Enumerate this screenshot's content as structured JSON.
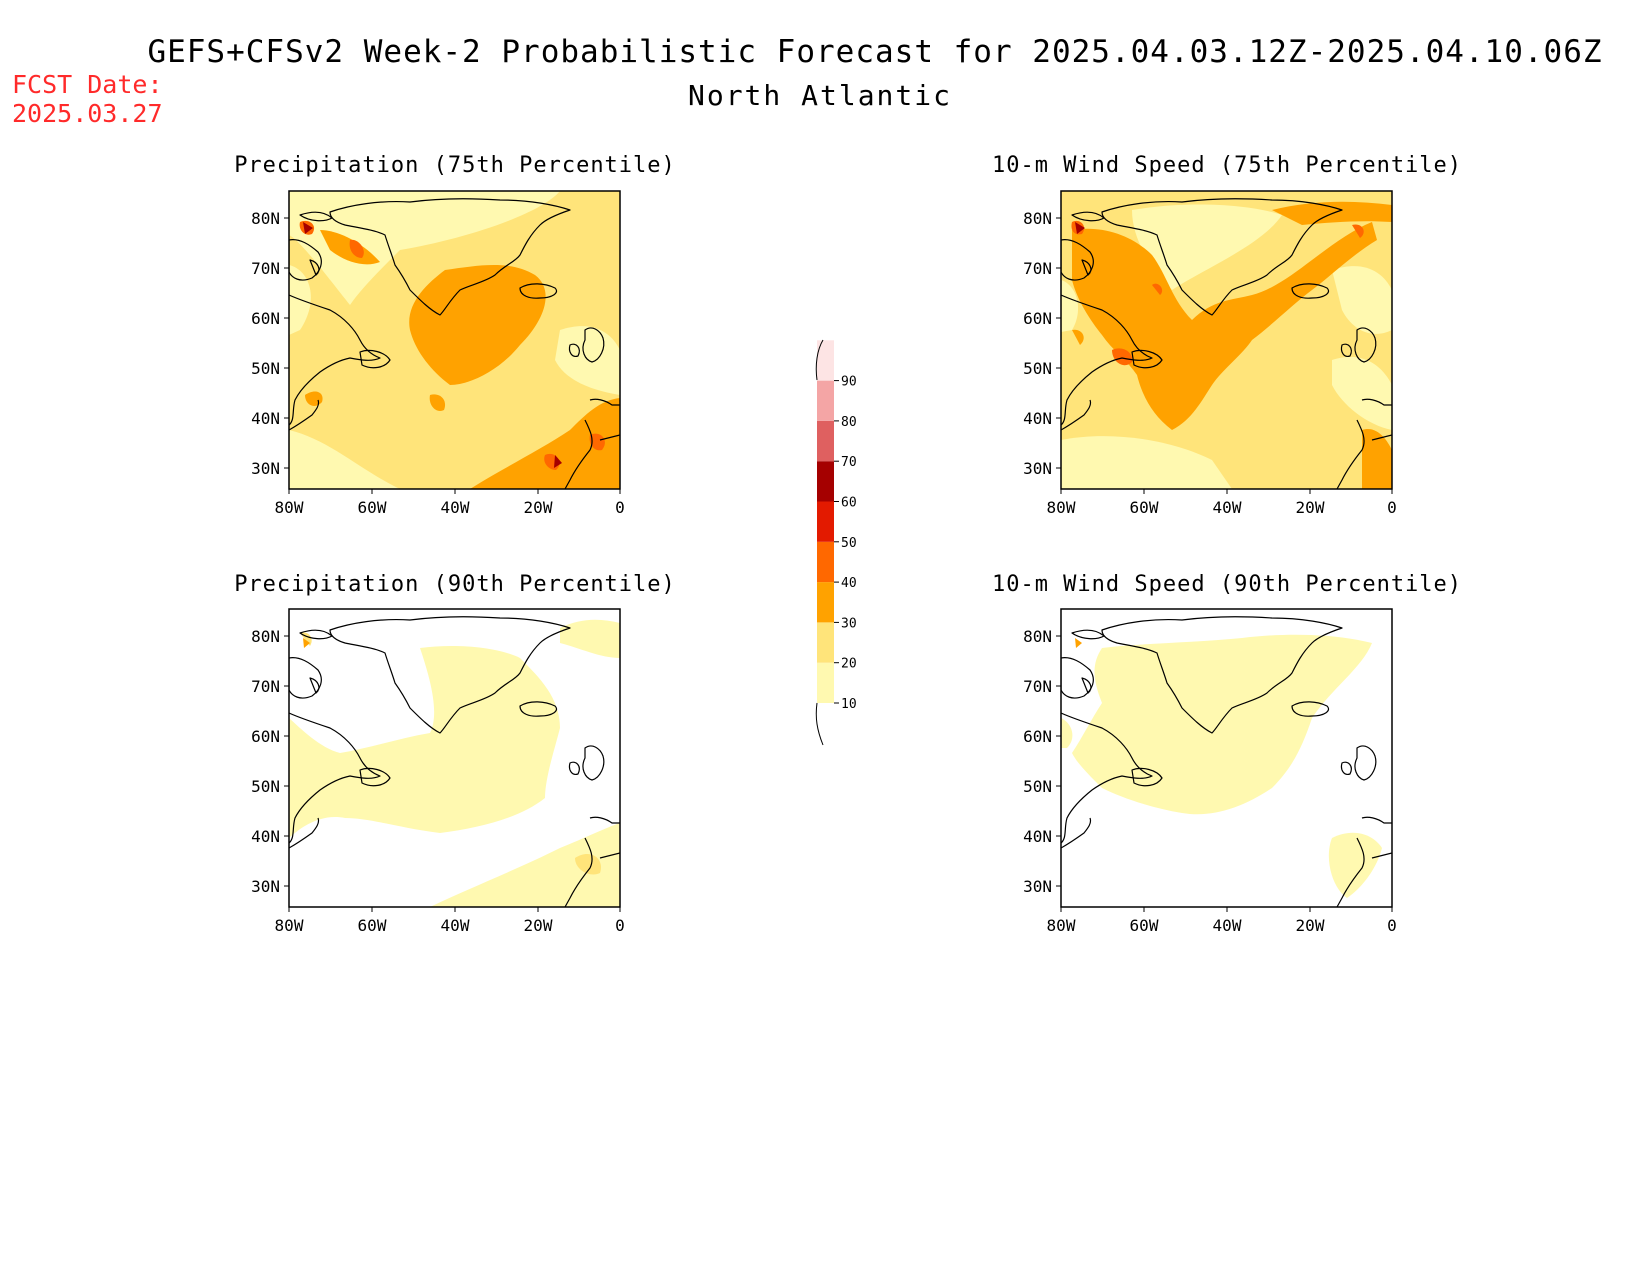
{
  "header": {
    "title": "GEFS+CFSv2 Week-2 Probabilistic Forecast for 2025.04.03.12Z-2025.04.10.06Z",
    "subtitle": "North Atlantic",
    "fcst_label": "FCST Date:",
    "fcst_date": "2025.03.27"
  },
  "axes": {
    "lat_ticks": [
      "80N",
      "70N",
      "60N",
      "50N",
      "40N",
      "30N"
    ],
    "lon_ticks": [
      "80W",
      "60W",
      "40W",
      "20W",
      "0"
    ]
  },
  "panels": [
    {
      "title": "Precipitation (75th Percentile)",
      "variable": "precipitation",
      "percentile": 75
    },
    {
      "title": "10-m Wind Speed (75th Percentile)",
      "variable": "wind",
      "percentile": 75
    },
    {
      "title": "Precipitation (90th Percentile)",
      "variable": "precipitation",
      "percentile": 90
    },
    {
      "title": "10-m Wind Speed (90th Percentile)",
      "variable": "wind",
      "percentile": 90
    }
  ],
  "colorbar": {
    "labels": [
      "10",
      "20",
      "30",
      "40",
      "50",
      "60",
      "70",
      "80",
      "90"
    ],
    "colors": [
      "#fff9b0",
      "#ffe47a",
      "#ffa200",
      "#ff6800",
      "#e31a00",
      "#a50000",
      "#df6060",
      "#f4a5a5",
      "#fde4e4"
    ]
  }
}
